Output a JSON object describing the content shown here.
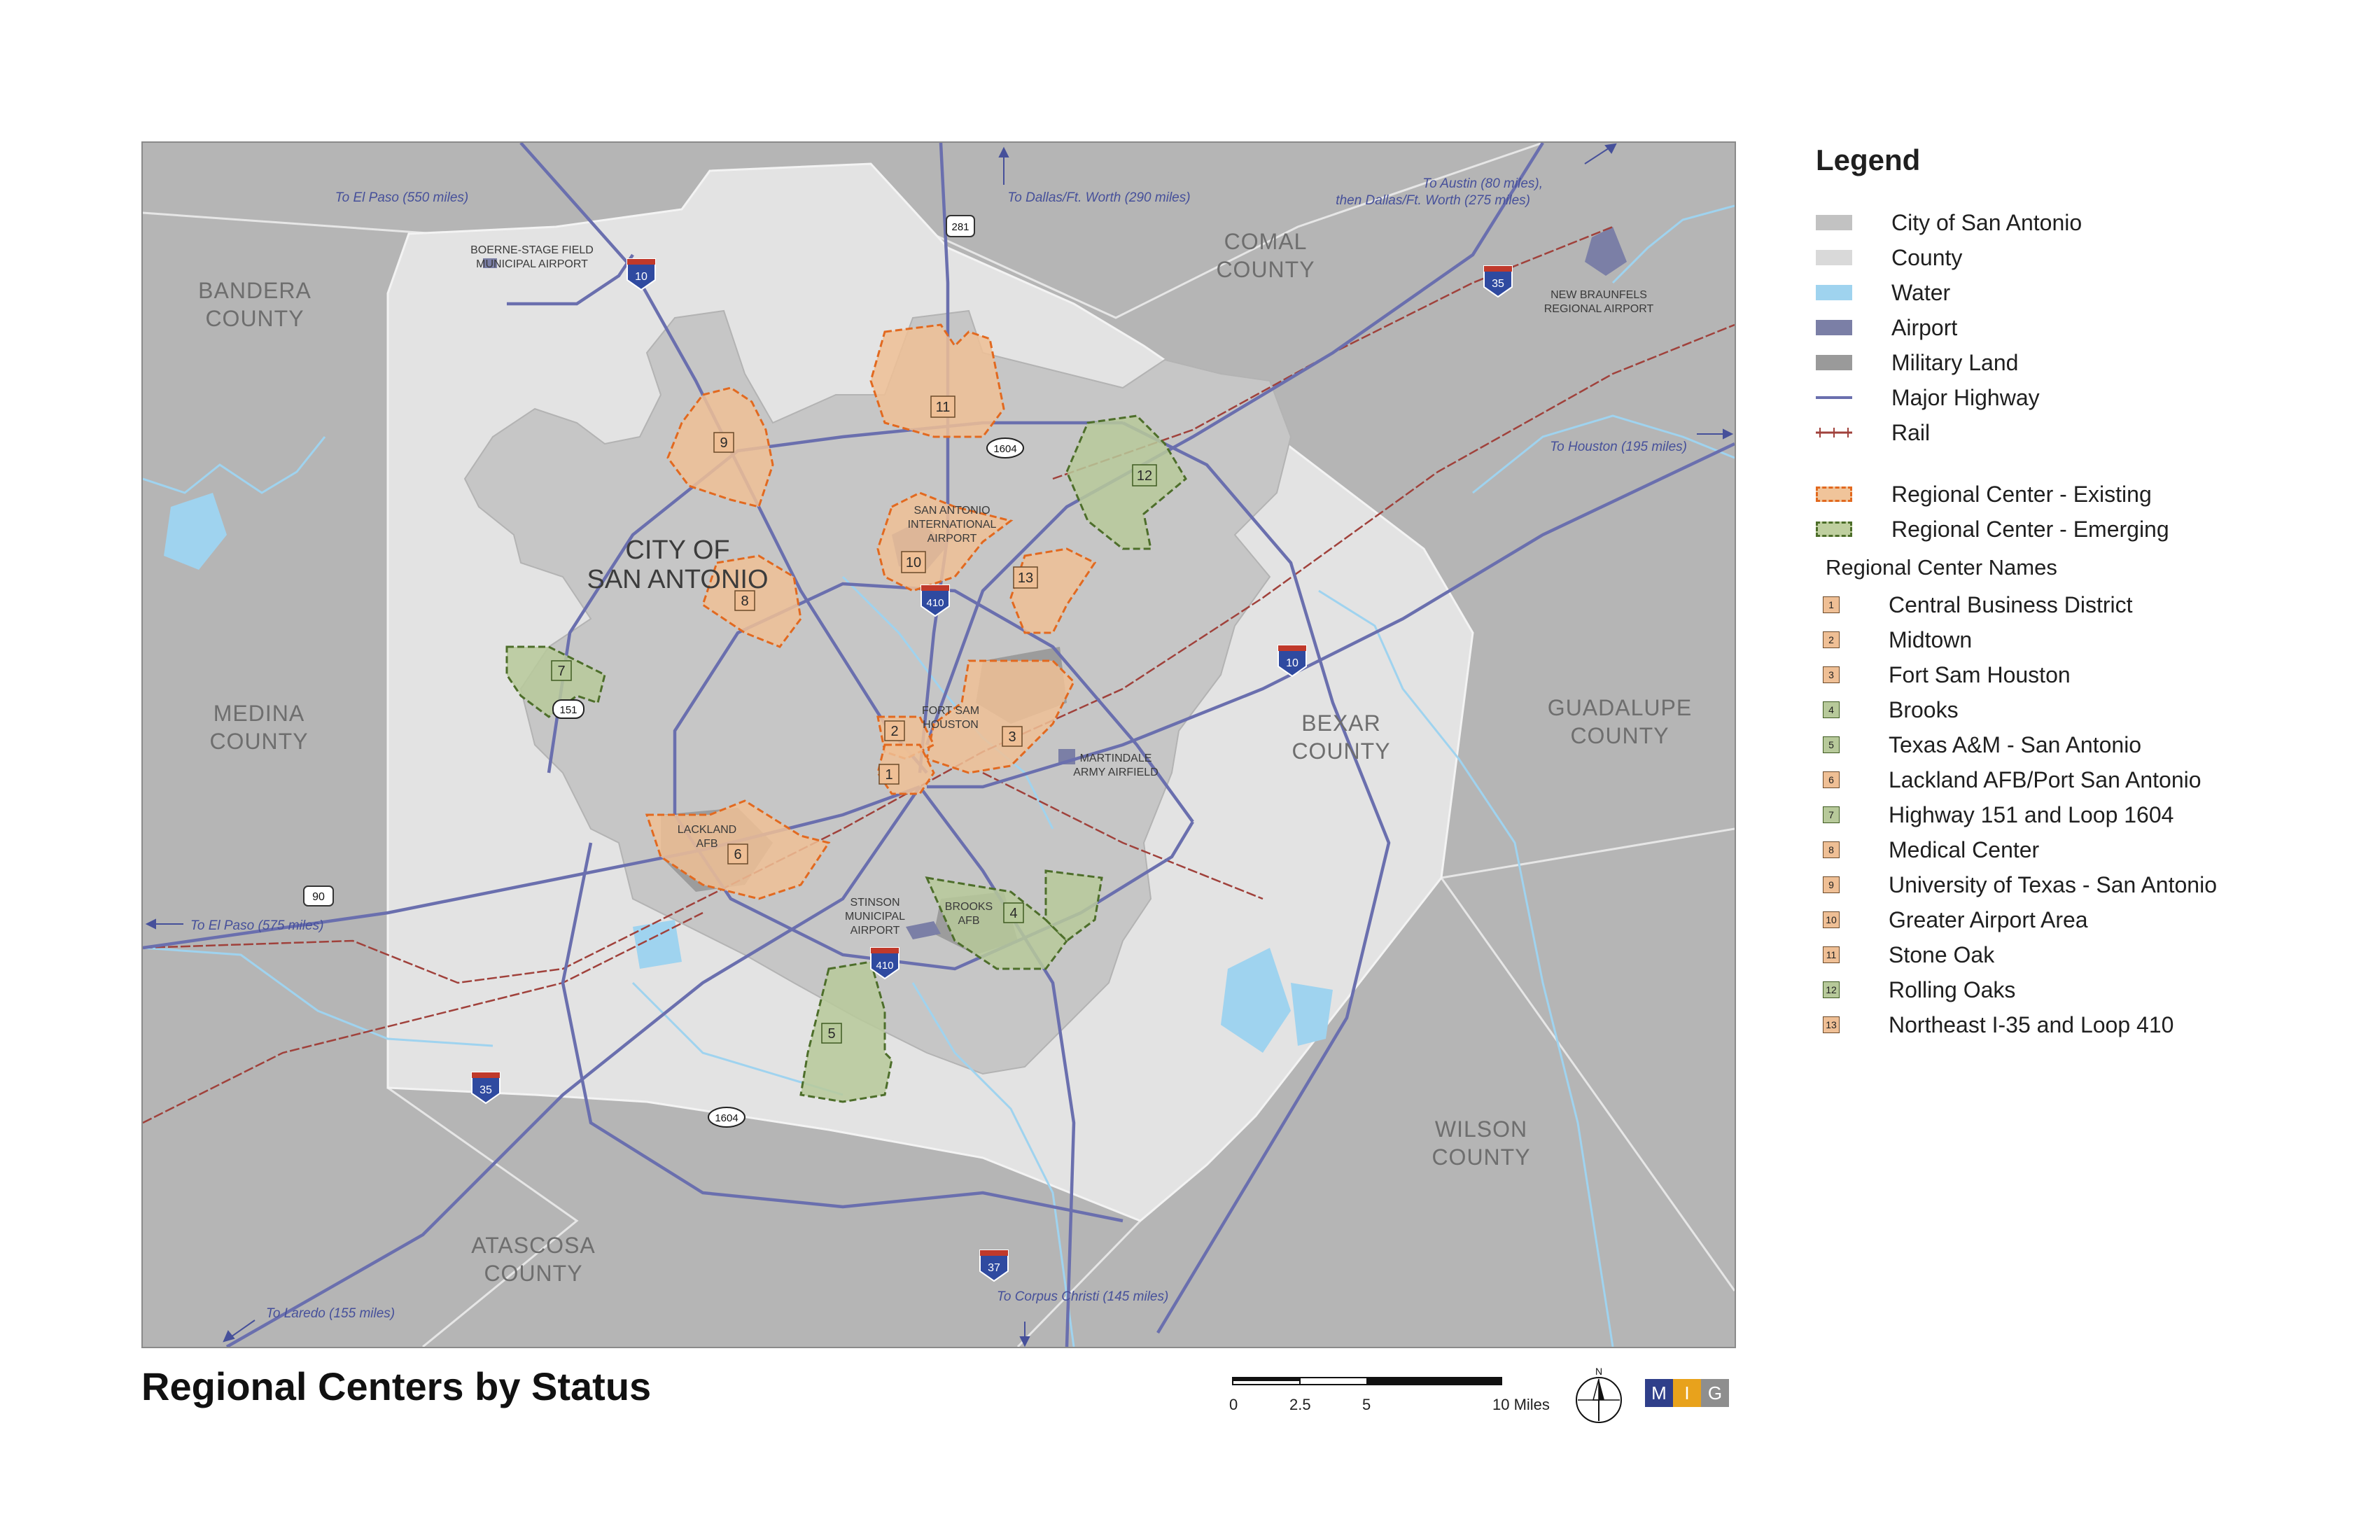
{
  "map": {
    "city_label_line1": "CITY OF",
    "city_label_line2": "SAN ANTONIO",
    "counties": [
      {
        "line1": "BANDERA",
        "line2": "COUNTY"
      },
      {
        "line1": "COMAL",
        "line2": "COUNTY"
      },
      {
        "line1": "MEDINA",
        "line2": "COUNTY"
      },
      {
        "line1": "BEXAR",
        "line2": "COUNTY"
      },
      {
        "line1": "GUADALUPE",
        "line2": "COUNTY"
      },
      {
        "line1": "WILSON",
        "line2": "COUNTY"
      },
      {
        "line1": "ATASCOSA",
        "line2": "COUNTY"
      }
    ],
    "places": {
      "boerne_1": "BOERNE-STAGE FIELD",
      "boerne_2": "MUNICIPAL AIRPORT",
      "newbraunfels_1": "NEW BRAUNFELS",
      "newbraunfels_2": "REGIONAL AIRPORT",
      "saia_1": "SAN ANTONIO",
      "saia_2": "INTERNATIONAL",
      "saia_3": "AIRPORT",
      "fortsam_1": "FORT SAM",
      "fortsam_2": "HOUSTON",
      "martindale_1": "MARTINDALE",
      "martindale_2": "ARMY AIRFIELD",
      "lackland_1": "LACKLAND",
      "lackland_2": "AFB",
      "stinson_1": "STINSON",
      "stinson_2": "MUNICIPAL",
      "stinson_3": "AIRPORT",
      "brooks_1": "BROOKS",
      "brooks_2": "AFB"
    },
    "directions": {
      "el_paso_north": "To El Paso (550 miles)",
      "dallas": "To Dallas/Ft. Worth (290 miles)",
      "austin_1": "To Austin (80 miles),",
      "austin_2": "then Dallas/Ft. Worth (275 miles)",
      "houston": "To Houston (195 miles)",
      "el_paso_west": "To El Paso (575 miles)",
      "laredo": "To Laredo (155 miles)",
      "corpus": "To Corpus Christi (145 miles)"
    },
    "highway_shields": {
      "i10_north": "10",
      "us281": "281",
      "i35_north": "35",
      "loop1604_north": "1604",
      "i410_north": "410",
      "i10_east": "10",
      "sh151": "151",
      "us90": "90",
      "i410_south": "410",
      "i35_south": "35",
      "loop1604_south": "1604",
      "i37": "37"
    },
    "center_numbers": [
      "1",
      "2",
      "3",
      "4",
      "5",
      "6",
      "7",
      "8",
      "9",
      "10",
      "11",
      "12",
      "13"
    ]
  },
  "title": "Regional Centers by Status",
  "legend": {
    "heading": "Legend",
    "layers": [
      {
        "label": "City of San Antonio",
        "color": "#c2c2c2"
      },
      {
        "label": "County",
        "color": "#d9d9d9"
      },
      {
        "label": "Water",
        "color": "#9fd3ef"
      },
      {
        "label": "Airport",
        "color": "#7b7fa6"
      },
      {
        "label": "Military Land",
        "color": "#9a9a9a"
      },
      {
        "label": "Major Highway",
        "color": "#6a6fae"
      },
      {
        "label": "Rail",
        "color": "#a0413b"
      }
    ],
    "status": [
      {
        "label": "Regional Center - Existing",
        "color": "#f0c49a",
        "border": "#e2691f"
      },
      {
        "label": "Regional Center - Emerging",
        "color": "#bfcf9f",
        "border": "#4d6e2a"
      }
    ],
    "names_heading": "Regional Center Names",
    "centers": [
      {
        "num": "1",
        "name": "Central Business District",
        "status": "existing"
      },
      {
        "num": "2",
        "name": "Midtown",
        "status": "existing"
      },
      {
        "num": "3",
        "name": "Fort Sam Houston",
        "status": "existing"
      },
      {
        "num": "4",
        "name": "Brooks",
        "status": "emerging"
      },
      {
        "num": "5",
        "name": "Texas A&M - San Antonio",
        "status": "emerging"
      },
      {
        "num": "6",
        "name": "Lackland AFB/Port San Antonio",
        "status": "existing"
      },
      {
        "num": "7",
        "name": "Highway 151 and Loop 1604",
        "status": "emerging"
      },
      {
        "num": "8",
        "name": "Medical Center",
        "status": "existing"
      },
      {
        "num": "9",
        "name": "University of Texas - San Antonio",
        "status": "existing"
      },
      {
        "num": "10",
        "name": "Greater Airport Area",
        "status": "existing"
      },
      {
        "num": "11",
        "name": "Stone Oak",
        "status": "existing"
      },
      {
        "num": "12",
        "name": "Rolling Oaks",
        "status": "emerging"
      },
      {
        "num": "13",
        "name": "Northeast I-35 and Loop 410",
        "status": "existing"
      }
    ]
  },
  "scale": {
    "t0": "0",
    "t1": "2.5",
    "t2": "5",
    "t3": "10 Miles"
  },
  "north_label": "N",
  "logo": {
    "l1": "M",
    "l2": "I",
    "l3": "G"
  }
}
